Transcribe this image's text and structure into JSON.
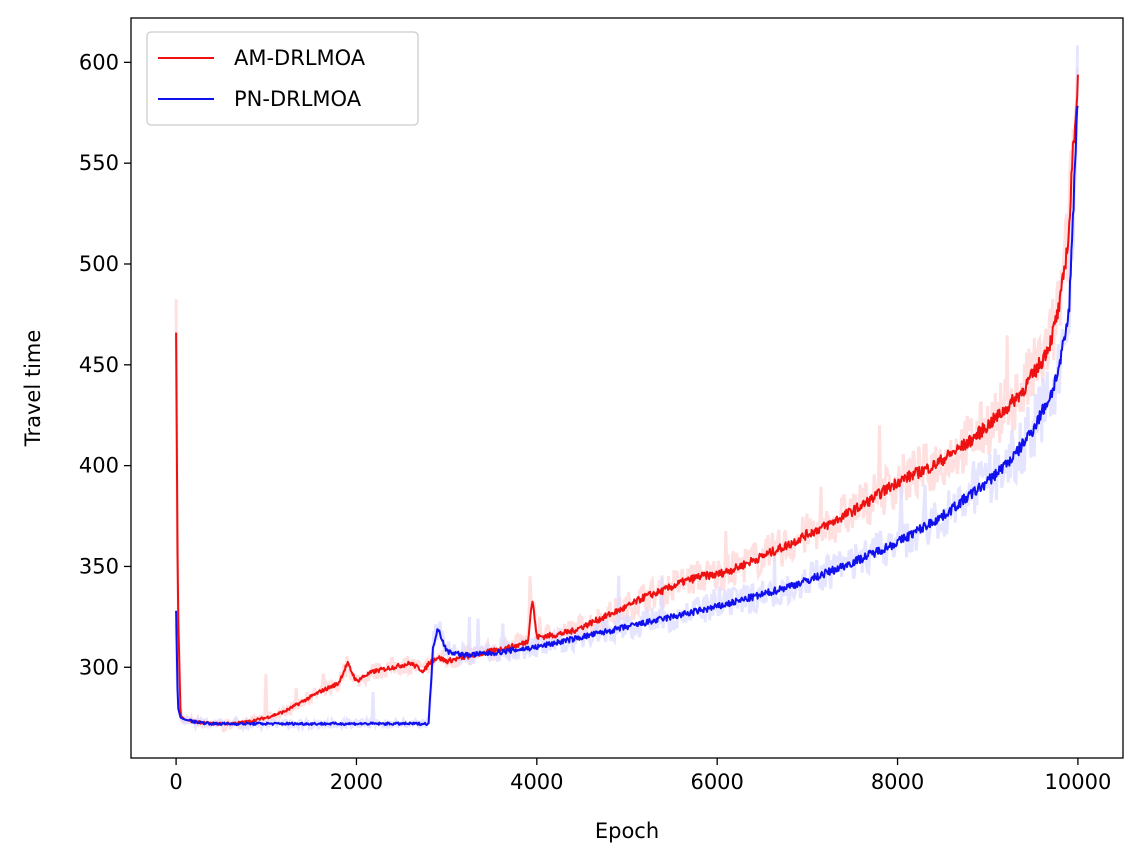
{
  "chart_data": {
    "type": "line",
    "title": "",
    "xlabel": "Epoch",
    "ylabel": "Travel time",
    "xlim": [
      -500,
      10500
    ],
    "ylim": [
      255,
      622
    ],
    "xticks": [
      0,
      2000,
      4000,
      6000,
      8000,
      10000
    ],
    "yticks": [
      300,
      350,
      400,
      450,
      500,
      550,
      600
    ],
    "grid": false,
    "legend": "top-left",
    "series": [
      {
        "name": "AM-DRLMOA",
        "color": "#ee1111",
        "band_color": "#ffd6d6",
        "x": [
          0,
          20,
          50,
          100,
          200,
          400,
          600,
          800,
          1000,
          1200,
          1400,
          1600,
          1800,
          1900,
          2000,
          2100,
          2200,
          2400,
          2600,
          2750,
          2800,
          2900,
          3000,
          3200,
          3400,
          3600,
          3800,
          3900,
          3950,
          4000,
          4200,
          4400,
          4600,
          4800,
          5000,
          5200,
          5400,
          5600,
          5800,
          6000,
          6200,
          6400,
          6600,
          6800,
          7000,
          7200,
          7400,
          7600,
          7800,
          8000,
          8200,
          8400,
          8600,
          8800,
          9000,
          9200,
          9400,
          9600,
          9700,
          9800,
          9900,
          9950,
          10000
        ],
        "y": [
          466,
          330,
          276,
          274,
          273,
          272,
          272,
          273,
          275,
          278,
          283,
          288,
          292,
          302,
          293,
          296,
          298,
          300,
          302,
          298,
          302,
          305,
          303,
          305,
          307,
          309,
          311,
          313,
          334,
          315,
          316,
          318,
          322,
          326,
          330,
          335,
          338,
          342,
          345,
          346,
          349,
          353,
          357,
          361,
          366,
          370,
          375,
          380,
          386,
          392,
          396,
          400,
          406,
          412,
          420,
          428,
          438,
          452,
          462,
          480,
          515,
          560,
          590
        ]
      },
      {
        "name": "PN-DRLMOA",
        "color": "#1111ee",
        "band_color": "#dcdcff",
        "x": [
          0,
          20,
          50,
          100,
          200,
          400,
          600,
          800,
          1000,
          1500,
          2000,
          2500,
          2800,
          2850,
          2900,
          3000,
          3200,
          3500,
          4000,
          4500,
          5000,
          5500,
          6000,
          6500,
          7000,
          7500,
          8000,
          8500,
          9000,
          9300,
          9500,
          9700,
          9800,
          9900,
          9950,
          10000
        ],
        "y": [
          328,
          280,
          275,
          274,
          273,
          272,
          272,
          272,
          272,
          272,
          272,
          272,
          272,
          310,
          320,
          308,
          306,
          307,
          310,
          315,
          320,
          325,
          330,
          336,
          343,
          352,
          362,
          375,
          392,
          405,
          418,
          435,
          450,
          475,
          530,
          584
        ]
      }
    ]
  }
}
